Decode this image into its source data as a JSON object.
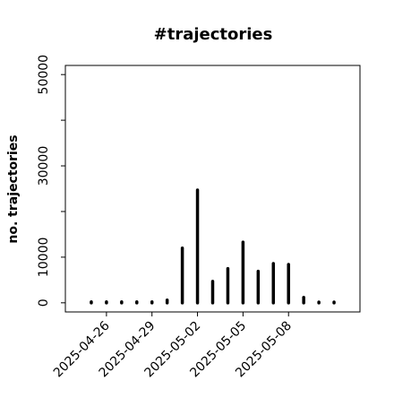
{
  "chart_data": {
    "type": "needle",
    "title": "#trajectories",
    "ylabel": "no. trajectories",
    "x": [
      "2025-04-25",
      "2025-04-26",
      "2025-04-27",
      "2025-04-28",
      "2025-04-29",
      "2025-04-30",
      "2025-05-01",
      "2025-05-02",
      "2025-05-03",
      "2025-05-04",
      "2025-05-05",
      "2025-05-06",
      "2025-05-07",
      "2025-05-08",
      "2025-05-09",
      "2025-05-10",
      "2025-05-11"
    ],
    "values": [
      200,
      200,
      200,
      200,
      200,
      600,
      12000,
      24700,
      4700,
      7500,
      13300,
      6900,
      8600,
      8400,
      1200,
      150,
      150
    ],
    "color": "#000000",
    "xlim": [
      "2025-04-23T07:00",
      "2025-05-12T17:00"
    ],
    "xticks": [
      "2025-04-26",
      "2025-04-29",
      "2025-05-02",
      "2025-05-05",
      "2025-05-08"
    ],
    "ylim": [
      -2000,
      52000
    ],
    "yticks": [
      0,
      10000,
      30000,
      50000
    ],
    "yticks_minor": [
      20000,
      40000
    ]
  }
}
